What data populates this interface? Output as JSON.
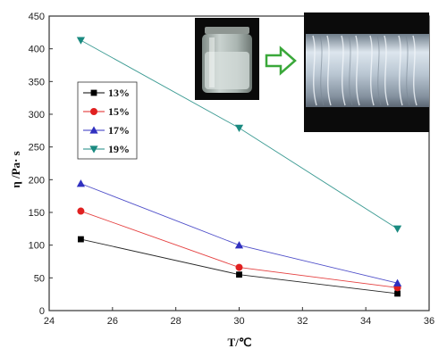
{
  "chart_data": {
    "type": "line",
    "x": [
      25,
      30,
      35
    ],
    "xlabel": "T/℃",
    "ylabel": "η /Pa· s",
    "xlim": [
      24,
      36
    ],
    "ylim": [
      0,
      450
    ],
    "xticks": [
      24,
      26,
      28,
      30,
      32,
      34,
      36
    ],
    "yticks": [
      0,
      50,
      100,
      150,
      200,
      250,
      300,
      350,
      400,
      450
    ],
    "grid": false,
    "legend_position": "left",
    "series": [
      {
        "name": "13%",
        "values": [
          109,
          55,
          26
        ],
        "color": "#000000",
        "marker": "square"
      },
      {
        "name": "15%",
        "values": [
          152,
          66,
          35
        ],
        "color": "#e02020",
        "marker": "circle"
      },
      {
        "name": "17%",
        "values": [
          194,
          100,
          42
        ],
        "color": "#3030c0",
        "marker": "triangle-up"
      },
      {
        "name": "19%",
        "values": [
          413,
          279,
          125
        ],
        "color": "#1a8a80",
        "marker": "triangle-down"
      }
    ]
  },
  "insets": {
    "photo_1": "photo of a jar containing a cloudy liquid",
    "photo_2": "photo of a fibrous textured material",
    "arrow": "green-arrow"
  }
}
